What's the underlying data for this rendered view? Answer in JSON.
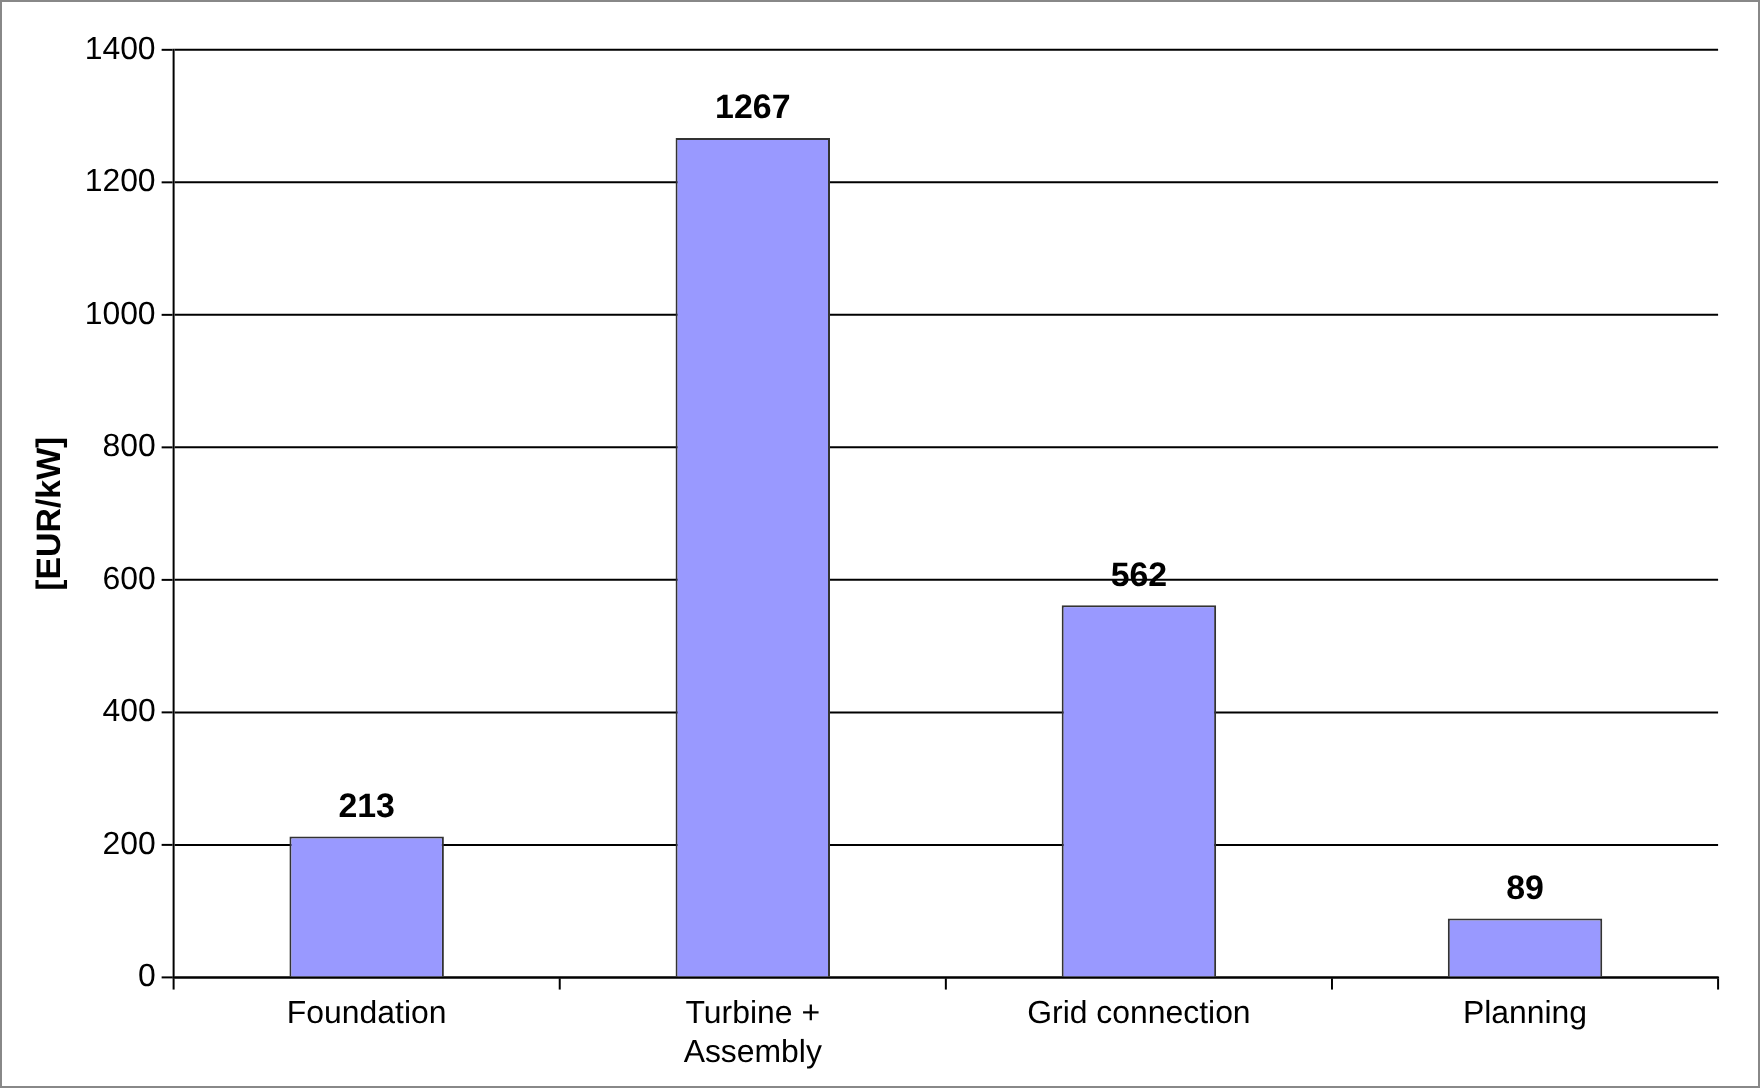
{
  "chart_data": {
    "type": "bar",
    "ylabel": "[EUR/kW]",
    "categories": [
      "Foundation",
      "Turbine + Assembly",
      "Grid connection",
      "Planning"
    ],
    "values": [
      213,
      1267,
      562,
      89
    ],
    "color": "#9999ff",
    "ylim": [
      0,
      1400
    ],
    "yticks": [
      0,
      200,
      400,
      600,
      800,
      1000,
      1200,
      1400
    ],
    "grid": "y",
    "data_labels": true
  }
}
